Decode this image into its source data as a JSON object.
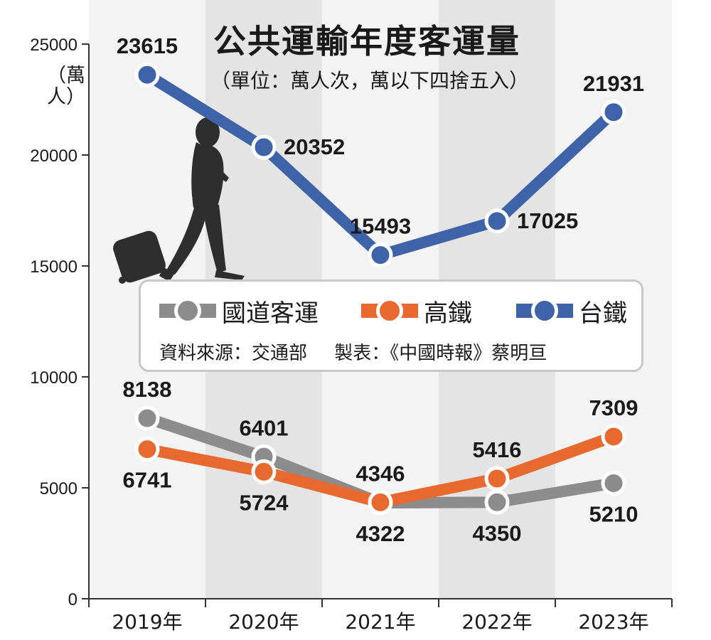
{
  "chart_data": {
    "type": "line",
    "title": "公共運輸年度客運量",
    "subtitle": "（單位：萬人次，萬以下四捨五入）",
    "ylabel": "（萬人）",
    "xlabel": "",
    "categories": [
      "2019年",
      "2020年",
      "2021年",
      "2022年",
      "2023年"
    ],
    "ylim": [
      0,
      25000
    ],
    "yticks": [
      0,
      5000,
      10000,
      15000,
      20000,
      25000
    ],
    "grid": false,
    "alternating_column_shading": true,
    "legend_position": "center",
    "series": [
      {
        "name": "國道客運",
        "color": "#8c8c8c",
        "values": [
          8138,
          6401,
          4322,
          4350,
          5210
        ],
        "label_placement": [
          "above",
          "above",
          "below",
          "below",
          "below"
        ]
      },
      {
        "name": "高鐵",
        "color": "#e8692f",
        "values": [
          6741,
          5724,
          4346,
          5416,
          7309
        ],
        "label_placement": [
          "below",
          "below",
          "above",
          "above",
          "above"
        ]
      },
      {
        "name": "台鐵",
        "color": "#3f63a8",
        "values": [
          23615,
          20352,
          15493,
          17025,
          21931
        ],
        "label_placement": [
          "above",
          "right",
          "above",
          "right",
          "above"
        ]
      }
    ]
  },
  "legend": {
    "items": [
      "國道客運",
      "高鐵",
      "台鐵"
    ]
  },
  "source": {
    "data_source": "資料來源：交通部",
    "made_by": "製表：《中國時報》蔡明亘"
  },
  "colors": {
    "panel_light": "#f3f3f3",
    "panel_dark": "#e4e4e4",
    "axis": "#333333",
    "text": "#1a1a1a"
  }
}
